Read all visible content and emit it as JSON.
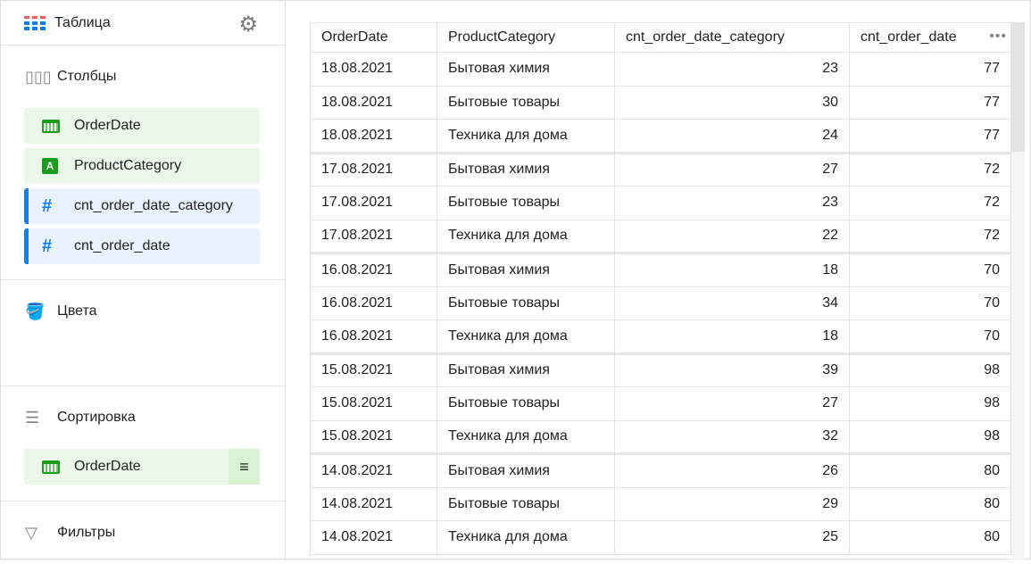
{
  "header": {
    "title": "Таблица",
    "icon": "table-grid-icon",
    "settings_icon": "gear-icon"
  },
  "sections": {
    "columns": {
      "label": "Столбцы",
      "items": [
        {
          "label": "OrderDate",
          "type": "date"
        },
        {
          "label": "ProductCategory",
          "type": "string",
          "type_letter": "A"
        },
        {
          "label": "cnt_order_date_category",
          "type": "measure"
        },
        {
          "label": "cnt_order_date",
          "type": "measure"
        }
      ]
    },
    "colors": {
      "label": "Цвета"
    },
    "sort": {
      "label": "Сортировка",
      "items": [
        {
          "label": "OrderDate",
          "type": "date"
        }
      ]
    },
    "filters": {
      "label": "Фильтры"
    }
  },
  "accent": {
    "dimension": "#1a9e1a",
    "measure": "#0e7dee"
  },
  "table": {
    "columns": [
      "OrderDate",
      "ProductCategory",
      "cnt_order_date_category",
      "cnt_order_date"
    ],
    "rows": [
      [
        "18.08.2021",
        "Бытовая химия",
        "23",
        "77"
      ],
      [
        "18.08.2021",
        "Бытовые товары",
        "30",
        "77"
      ],
      [
        "18.08.2021",
        "Техника для дома",
        "24",
        "77"
      ],
      [
        "17.08.2021",
        "Бытовая химия",
        "27",
        "72"
      ],
      [
        "17.08.2021",
        "Бытовые товары",
        "23",
        "72"
      ],
      [
        "17.08.2021",
        "Техника для дома",
        "22",
        "72"
      ],
      [
        "16.08.2021",
        "Бытовая химия",
        "18",
        "70"
      ],
      [
        "16.08.2021",
        "Бытовые товары",
        "34",
        "70"
      ],
      [
        "16.08.2021",
        "Техника для дома",
        "18",
        "70"
      ],
      [
        "15.08.2021",
        "Бытовая химия",
        "39",
        "98"
      ],
      [
        "15.08.2021",
        "Бытовые товары",
        "27",
        "98"
      ],
      [
        "15.08.2021",
        "Техника для дома",
        "32",
        "98"
      ],
      [
        "14.08.2021",
        "Бытовая химия",
        "26",
        "80"
      ],
      [
        "14.08.2021",
        "Бытовые товары",
        "29",
        "80"
      ],
      [
        "14.08.2021",
        "Техника для дома",
        "25",
        "80"
      ]
    ]
  }
}
